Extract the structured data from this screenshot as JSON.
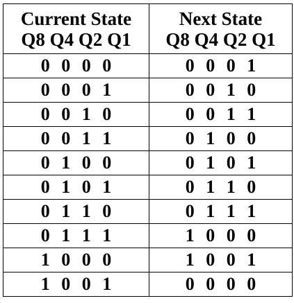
{
  "headers": {
    "current_title": "Current State",
    "current_sub": "Q8 Q4 Q2 Q1",
    "next_title": "Next State",
    "next_sub": "Q8 Q4 Q2 Q1"
  },
  "rows": [
    {
      "current": "0 0 0 0",
      "next": "0 0 0 1"
    },
    {
      "current": "0 0 0 1",
      "next": "0 0 1 0"
    },
    {
      "current": "0 0 1 0",
      "next": "0 0 1 1"
    },
    {
      "current": "0 0 1 1",
      "next": "0 1 0 0"
    },
    {
      "current": "0 1 0 0",
      "next": "0 1 0 1"
    },
    {
      "current": "0 1 0 1",
      "next": "0 1 1 0"
    },
    {
      "current": "0 1 1 0",
      "next": "0 1 1 1"
    },
    {
      "current": "0 1 1 1",
      "next": "1 0 0 0"
    },
    {
      "current": "1 0 0 0",
      "next": "1 0 0 1"
    },
    {
      "current": "1 0 0 1",
      "next": "0 0 0 0"
    }
  ]
}
